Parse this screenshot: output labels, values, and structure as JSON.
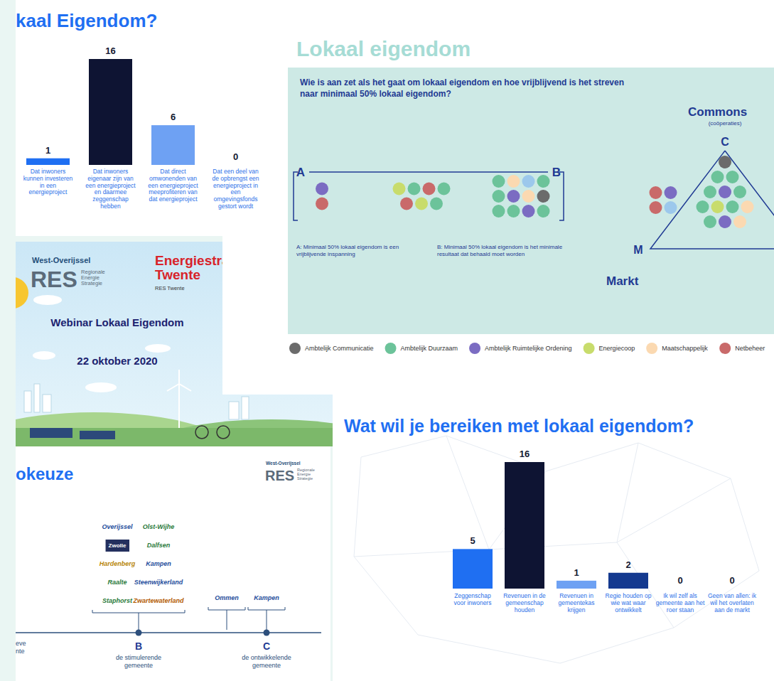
{
  "chart_data": [
    {
      "type": "bar",
      "title": "kaal Eigendom?",
      "categories": [
        "Dat inwoners kunnen investeren in een energieproject",
        "Dat inwoners eigenaar zijn van een energieproject en daarmee zeggenschap hebben",
        "Dat direct omwonenden van een energieproject meeprofiteren van dat energieproject",
        "Dat een deel van de opbrengst een energieproject in een omgevingsfonds gestort wordt"
      ],
      "values": [
        1,
        16,
        6,
        0
      ],
      "colors": [
        "#1f6ff2",
        "#0e1433",
        "#6ea1f3",
        "#1f6ff2"
      ],
      "ylim": [
        0,
        16
      ],
      "data_labels": true,
      "tick_labels": false
    },
    {
      "type": "bar",
      "title": "Wat wil je bereiken met lokaal eigendom?",
      "categories": [
        "Zeggenschap voor inwoners",
        "Revenuen in de gemeenschap houden",
        "Revenuen in gemeentekas krijgen",
        "Regie houden op wie wat waar ontwikkelt",
        "Ik wil zelf als gemeente aan het roer staan",
        "Geen van allen: ik wil het overlaten aan de markt"
      ],
      "values": [
        5,
        16,
        1,
        2,
        0,
        0
      ],
      "colors": [
        "#1f6ff2",
        "#0e1433",
        "#6ea1f3",
        "#14398f",
        "#1f6ff2",
        "#1f6ff2"
      ],
      "ylim": [
        0,
        16
      ],
      "data_labels": true,
      "tick_labels": false
    }
  ],
  "lokaal_eigendom": {
    "title": "Lokaal eigendom",
    "question": "Wie is aan zet als het gaat om lokaal eigendom en hoe vrijblijvend is het streven naar minimaal 50% lokaal eigendom?",
    "a_label": "A",
    "b_label": "B",
    "a_text": "A: Minimaal 50% lokaal eigendom is een vrijblijvende inspanning",
    "b_text": "B: Minimaal 50% lokaal eigendom is het minimale resultaat dat behaald moet worden",
    "commons": "Commons",
    "commons_sub": "(coöperaties)",
    "c_label": "C",
    "m_label": "M",
    "markt": "Markt",
    "legend": [
      {
        "label": "Ambtelijk Communicatie",
        "color": "#6b6b6b"
      },
      {
        "label": "Ambtelijk Duurzaam",
        "color": "#6cc39a"
      },
      {
        "label": "Ambtelijk Ruimtelijke Ordening",
        "color": "#7b6cc2"
      },
      {
        "label": "Energiecoop",
        "color": "#c8dc6c"
      },
      {
        "label": "Maatschappelijk",
        "color": "#fbd9b1"
      },
      {
        "label": "Netbeheer",
        "color": "#c96a6a"
      },
      {
        "color": "#9cc8ec"
      }
    ],
    "ab_clusters": [
      [
        [
          2
        ],
        [
          5
        ]
      ],
      [
        [
          3,
          1,
          5,
          1
        ],
        [
          5,
          3,
          1
        ]
      ],
      [
        [
          1,
          4,
          6,
          1
        ],
        [
          1,
          2,
          4,
          0
        ],
        [
          1,
          1,
          2,
          1
        ]
      ]
    ],
    "triangle_outside": [
      [
        5,
        2
      ],
      [
        5,
        6
      ]
    ],
    "triangle_inside": [
      [
        0
      ],
      [
        1,
        1
      ],
      [
        1,
        2,
        1
      ],
      [
        1,
        3,
        1,
        4
      ],
      [
        1,
        2,
        4
      ]
    ]
  },
  "webinar": {
    "brand_left_top": "West-Overijssel",
    "brand_left": "RES",
    "brand_left_sub": [
      "Regionale",
      "Energie",
      "Strategie"
    ],
    "brand_right": [
      "Energiestra",
      "Twente"
    ],
    "brand_right_sub": "RES Twente",
    "title": "Webinar Lokaal Eigendom",
    "date": "22 oktober 2020"
  },
  "rolkeuze": {
    "title": "okeuze",
    "logo": {
      "top": "West-Overijssel",
      "main": "RES",
      "sub": [
        "Regionale",
        "Energie",
        "Strategie"
      ]
    },
    "left_caption": "eve nte",
    "groups": [
      {
        "label": "B",
        "caption": "de stimulerende gemeente",
        "members": [
          "Overijssel",
          "Olst-Wijhe",
          "Zwolle",
          "Dalfsen",
          "Hardenberg",
          "Kampen",
          "Raalte",
          "Steenwijkerland",
          "Staphorst",
          "Zwartewaterland"
        ]
      },
      {
        "members": [
          "Ommen"
        ]
      },
      {
        "label": "C",
        "caption": "de ontwikkelende gemeente",
        "members": [
          "Kampen"
        ]
      }
    ]
  }
}
